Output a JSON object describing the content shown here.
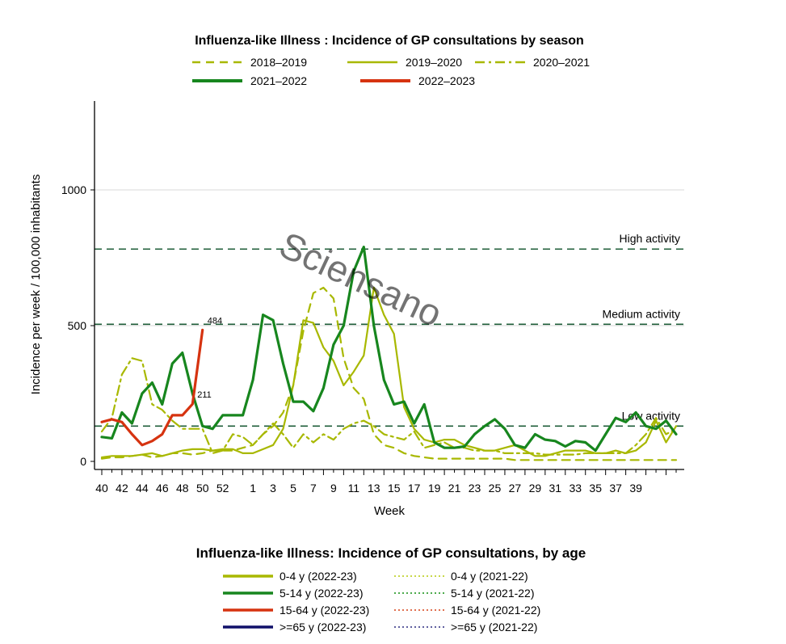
{
  "chart_data": [
    {
      "type": "line",
      "title": "Influenza-like Illness : Incidence of GP consultations by season",
      "xlabel": "Week",
      "ylabel": "Incidence per week / 100,000 inhabitants",
      "ylim": [
        0,
        1300
      ],
      "y_ticks": [
        0,
        500,
        1000
      ],
      "x_ticks": [
        "40",
        "42",
        "44",
        "46",
        "48",
        "50",
        "52",
        "1",
        "3",
        "5",
        "7",
        "9",
        "11",
        "13",
        "15",
        "17",
        "19",
        "21",
        "23",
        "25",
        "27",
        "29",
        "31",
        "33",
        "35",
        "37",
        "39"
      ],
      "legend": "top",
      "grid": "y-major",
      "watermark": "Sciensano",
      "thresholds": [
        {
          "label": "High activity",
          "value": 782
        },
        {
          "label": "Medium activity",
          "value": 505
        },
        {
          "label": "Low activity",
          "value": 130
        }
      ],
      "annotations": [
        {
          "text": "484",
          "week_index": 10,
          "value": 484
        },
        {
          "text": "211",
          "week_index": 9,
          "value": 211
        }
      ],
      "series": [
        {
          "name": "2018–2019",
          "color": "#a8b800",
          "style": "dashed",
          "values": [
            10,
            15,
            15,
            20,
            25,
            15,
            20,
            30,
            30,
            25,
            30,
            40,
            40,
            40,
            50,
            60,
            100,
            130,
            180,
            280,
            480,
            620,
            640,
            600,
            380,
            270,
            230,
            100,
            60,
            50,
            30,
            20,
            15,
            10,
            10,
            10,
            10,
            10,
            10,
            10,
            10,
            5,
            5,
            5,
            5,
            5,
            5,
            5,
            5,
            5,
            5,
            5,
            5,
            5,
            5,
            5,
            5,
            5
          ]
        },
        {
          "name": "2019–2020",
          "color": "#a8b800",
          "style": "solid",
          "values": [
            15,
            20,
            20,
            20,
            25,
            30,
            20,
            30,
            40,
            45,
            45,
            40,
            45,
            45,
            30,
            30,
            45,
            60,
            120,
            280,
            520,
            510,
            420,
            370,
            280,
            330,
            390,
            640,
            540,
            470,
            200,
            120,
            80,
            70,
            80,
            80,
            60,
            50,
            40,
            40,
            50,
            60,
            40,
            20,
            20,
            30,
            40,
            40,
            40,
            30,
            30,
            40,
            30,
            40,
            70,
            150,
            70,
            130
          ]
        },
        {
          "name": "2020–2021",
          "color": "#a8b800",
          "style": "dashdot",
          "values": [
            110,
            160,
            320,
            380,
            370,
            210,
            190,
            150,
            120,
            120,
            120,
            30,
            40,
            100,
            90,
            60,
            100,
            140,
            100,
            50,
            100,
            70,
            100,
            80,
            120,
            140,
            150,
            130,
            100,
            90,
            80,
            110,
            50,
            60,
            70,
            50,
            50,
            40,
            40,
            40,
            30,
            30,
            30,
            30,
            25,
            25,
            25,
            25,
            30,
            30,
            30,
            30,
            30,
            60,
            100,
            160,
            100,
            120
          ]
        },
        {
          "name": "2021–2022",
          "color": "#17861e",
          "style": "solid",
          "values": [
            90,
            85,
            180,
            140,
            250,
            290,
            210,
            360,
            400,
            250,
            130,
            120,
            170,
            170,
            170,
            300,
            540,
            520,
            360,
            220,
            220,
            185,
            270,
            430,
            500,
            700,
            790,
            500,
            300,
            210,
            220,
            140,
            210,
            70,
            50,
            50,
            55,
            100,
            130,
            155,
            120,
            60,
            50,
            100,
            80,
            75,
            55,
            75,
            70,
            40,
            100,
            160,
            145,
            180,
            130,
            120,
            150,
            100
          ]
        },
        {
          "name": "2022–2023",
          "color": "#d63310",
          "style": "solid",
          "values": [
            145,
            155,
            145,
            100,
            60,
            75,
            100,
            170,
            170,
            211,
            484
          ]
        }
      ]
    },
    {
      "type": "legend",
      "title": "Influenza-like Illness: Incidence of GP consultations, by age",
      "items": [
        {
          "label": "0-4 y (2022-23)",
          "color": "#a8b800",
          "style": "solid"
        },
        {
          "label": "0-4 y (2021-22)",
          "color": "#c8d84a",
          "style": "dotted"
        },
        {
          "label": "5-14 y (2022-23)",
          "color": "#17861e",
          "style": "solid"
        },
        {
          "label": "5-14 y (2021-22)",
          "color": "#4caa4c",
          "style": "dotted"
        },
        {
          "label": "15-64 y (2022-23)",
          "color": "#d63310",
          "style": "solid"
        },
        {
          "label": "15-64 y (2021-22)",
          "color": "#e07050",
          "style": "dotted"
        },
        {
          "label": ">=65 y (2022-23)",
          "color": "#10106a",
          "style": "solid"
        },
        {
          "label": ">=65 y (2021-22)",
          "color": "#6060a0",
          "style": "dotted"
        }
      ]
    }
  ]
}
